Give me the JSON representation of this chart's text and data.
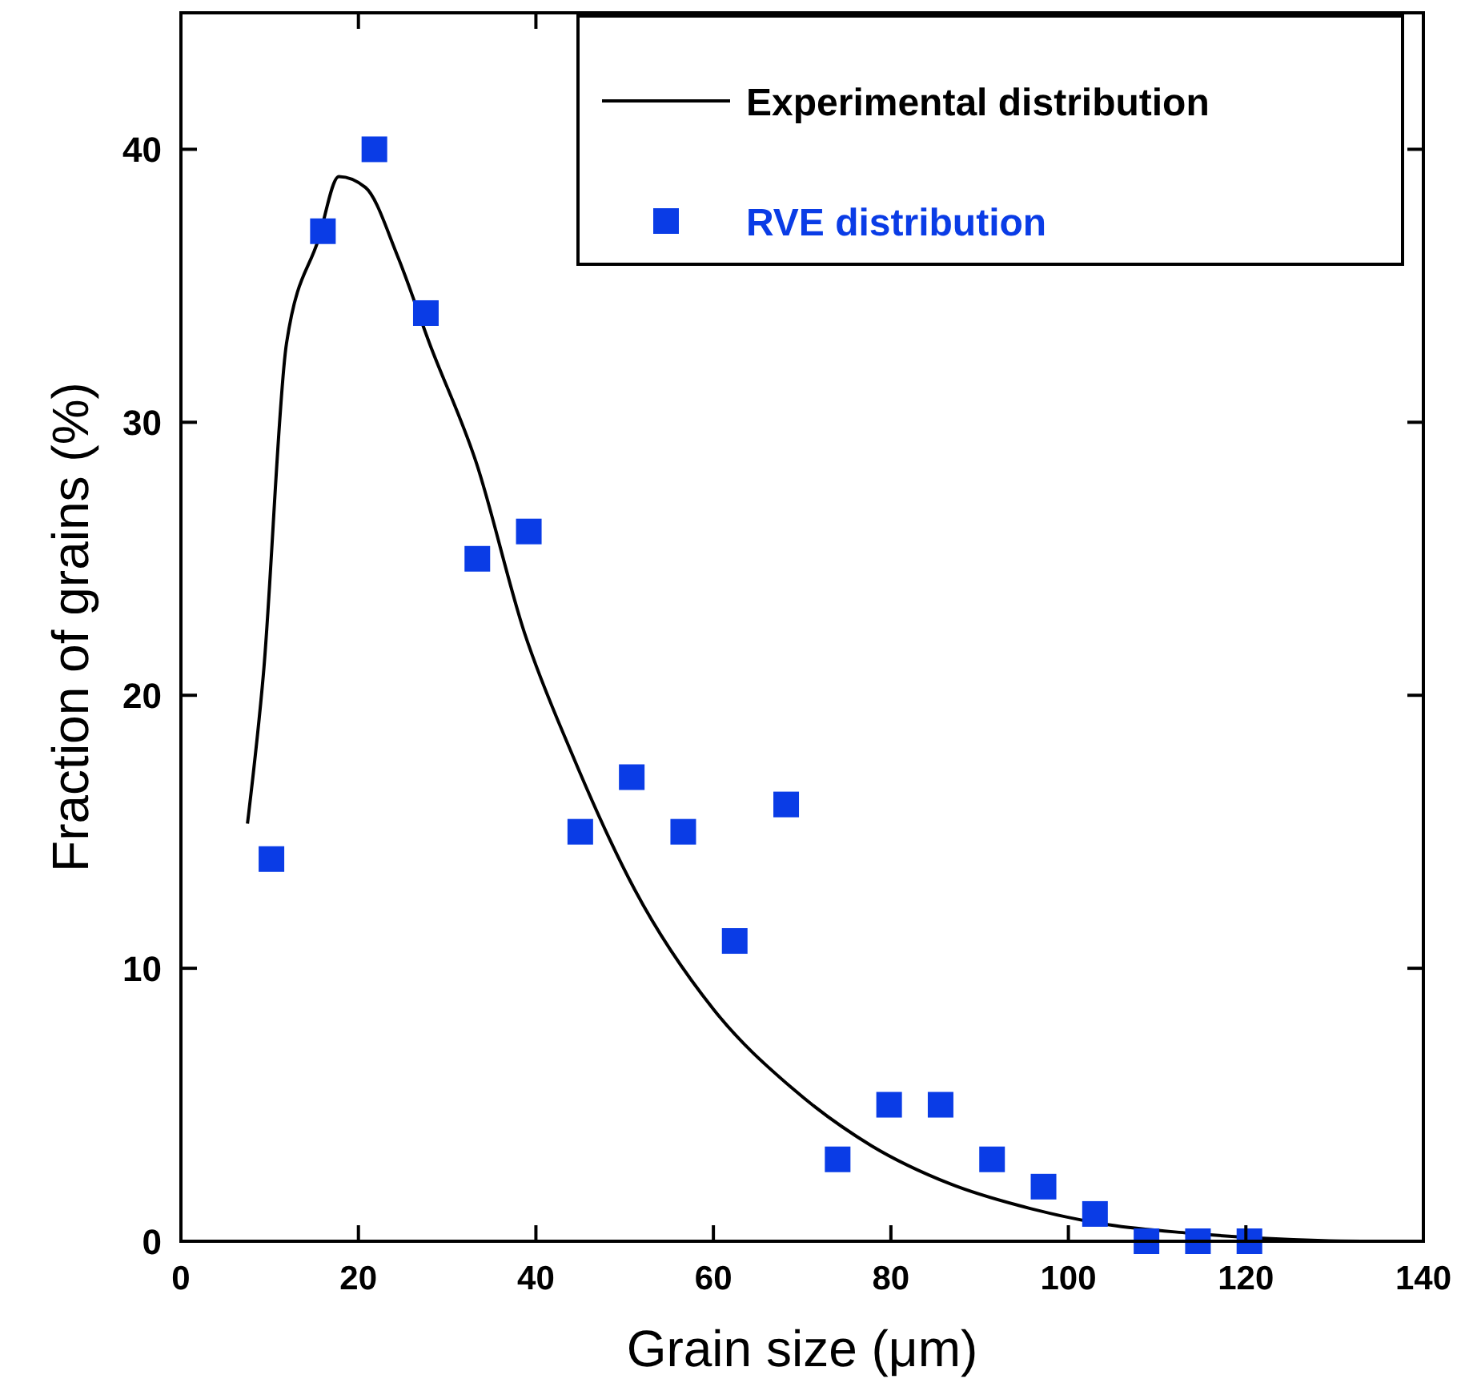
{
  "chart_data": {
    "type": "scatter",
    "xlabel": "Grain size (μm)",
    "ylabel": "Fraction of grains (%)",
    "xlim": [
      0,
      140
    ],
    "ylim": [
      0,
      45
    ],
    "xticks": [
      0,
      20,
      40,
      60,
      80,
      100,
      120,
      140
    ],
    "yticks": [
      0,
      10,
      20,
      30,
      40
    ],
    "legend": "top right",
    "series": [
      {
        "name": "Experimental distribution",
        "type": "line",
        "color": "#000000",
        "marker": "none",
        "x": [
          7.5,
          9.3,
          11.9,
          15.5,
          17.8,
          20.8,
          24.4,
          28,
          33.3,
          38.7,
          44,
          51.1,
          60,
          68.9,
          77.8,
          86.7,
          95.7,
          104.6,
          113.5,
          122.4,
          133,
          138
        ],
        "values": [
          15.3,
          20.8,
          32.9,
          36.7,
          39.0,
          38.6,
          36.1,
          32.9,
          28.5,
          22.3,
          17.9,
          12.9,
          8.5,
          5.6,
          3.5,
          2.1,
          1.2,
          0.6,
          0.3,
          0.1,
          0,
          0
        ]
      },
      {
        "name": "RVE distribution",
        "color": "#0a3ce6",
        "marker": "square",
        "x": [
          10.2,
          16,
          21.8,
          27.6,
          33.4,
          39.2,
          45,
          50.8,
          56.6,
          62.4,
          68.2,
          74,
          79.8,
          85.6,
          91.4,
          97.2,
          103,
          108.8,
          114.6,
          120.4
        ],
        "values": [
          14,
          37,
          40,
          34,
          25,
          26,
          15,
          17,
          15,
          11,
          16,
          3,
          5,
          5,
          3,
          2,
          1,
          0,
          0,
          0
        ]
      }
    ]
  }
}
